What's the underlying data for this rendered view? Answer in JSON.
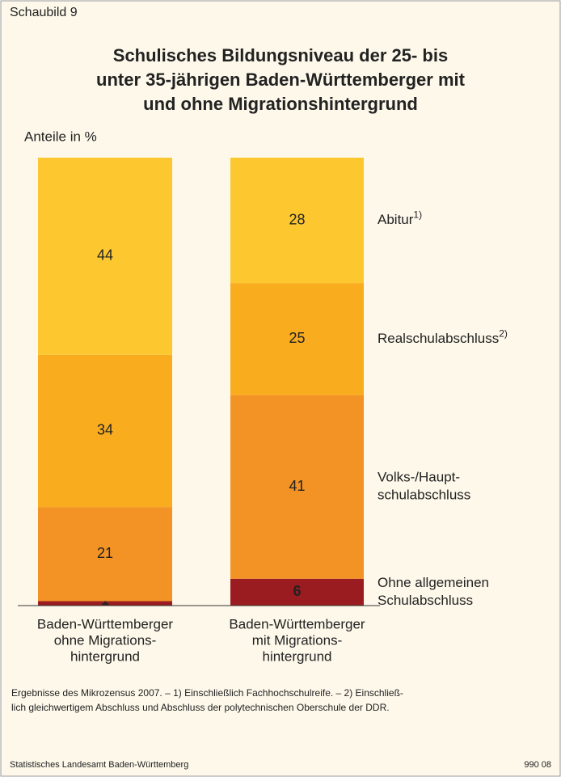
{
  "chart_data": {
    "type": "stacked_bar",
    "label": "Schaubild 9",
    "title": [
      "Schulisches Bildungsniveau der 25- bis",
      "unter 35-jährigen Baden-Württemberger mit",
      "und ohne Migrationshintergrund"
    ],
    "y_label": "Anteile in %",
    "categories": [
      [
        "Baden-Württemberger",
        "ohne Migrations-",
        "hintergrund"
      ],
      [
        "Baden-Württemberger",
        "mit Migrations-",
        "hintergrund"
      ]
    ],
    "ylim": [
      0,
      100
    ],
    "series": [
      {
        "name": [
          "Ohne allgemeinen",
          "Schulabschluss"
        ],
        "color": "#9b1c20",
        "label_color": "#ffffff",
        "values": [
          1,
          6
        ]
      },
      {
        "name": [
          "Volks-/Haupt-",
          "schulabschluss"
        ],
        "color": "#f39325",
        "label_color": "#333333",
        "values": [
          21,
          41
        ]
      },
      {
        "name": [
          "Realschulabschluss"
        ],
        "footnote": "2)",
        "color": "#f8ac1e",
        "label_color": "#333333",
        "values": [
          34,
          25
        ]
      },
      {
        "name": [
          "Abitur"
        ],
        "footnote": "1)",
        "color": "#fdc82f",
        "label_color": "#333333",
        "values": [
          44,
          28
        ]
      }
    ],
    "notes": [
      "Ergebnisse des Mikrozensus 2007. – 1) Einschließlich Fachhochschulreife. – 2) Einschließ-",
      "lich gleichwertigem Abschluss und Abschluss der polytechnischen Oberschule der DDR."
    ],
    "source": "Statistisches Landesamt Baden-Württemberg",
    "code": "990 08"
  }
}
